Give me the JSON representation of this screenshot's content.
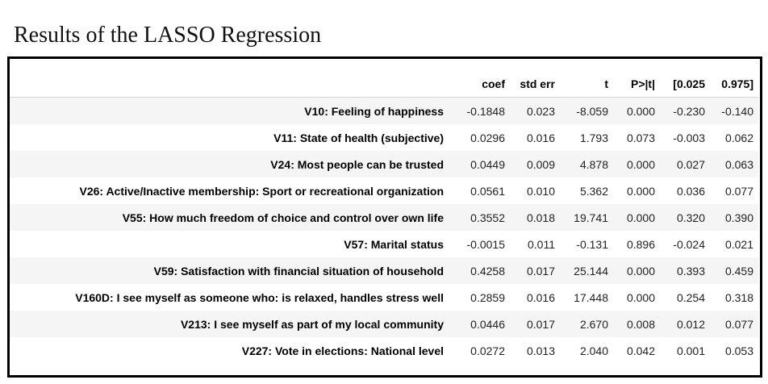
{
  "page": {
    "title": "Results of the LASSO Regression"
  },
  "table": {
    "columns": [
      "coef",
      "std err",
      "t",
      "P>|t|",
      "[0.025",
      "0.975]"
    ],
    "rows": [
      {
        "label": "V10: Feeling of happiness",
        "values": [
          "-0.1848",
          "0.023",
          "-8.059",
          "0.000",
          "-0.230",
          "-0.140"
        ]
      },
      {
        "label": "V11: State of health (subjective)",
        "values": [
          "0.0296",
          "0.016",
          "1.793",
          "0.073",
          "-0.003",
          "0.062"
        ]
      },
      {
        "label": "V24: Most people can be trusted",
        "values": [
          "0.0449",
          "0.009",
          "4.878",
          "0.000",
          "0.027",
          "0.063"
        ]
      },
      {
        "label": "V26: Active/Inactive membership: Sport or recreational organization",
        "values": [
          "0.0561",
          "0.010",
          "5.362",
          "0.000",
          "0.036",
          "0.077"
        ]
      },
      {
        "label": "V55: How much freedom of choice and control over own life",
        "values": [
          "0.3552",
          "0.018",
          "19.741",
          "0.000",
          "0.320",
          "0.390"
        ]
      },
      {
        "label": "V57: Marital status",
        "values": [
          "-0.0015",
          "0.011",
          "-0.131",
          "0.896",
          "-0.024",
          "0.021"
        ]
      },
      {
        "label": "V59: Satisfaction with financial situation of household",
        "values": [
          "0.4258",
          "0.017",
          "25.144",
          "0.000",
          "0.393",
          "0.459"
        ]
      },
      {
        "label": "V160D: I see myself as someone who: is relaxed, handles stress well",
        "values": [
          "0.2859",
          "0.016",
          "17.448",
          "0.000",
          "0.254",
          "0.318"
        ]
      },
      {
        "label": "V213: I see myself as part of my local community",
        "values": [
          "0.0446",
          "0.017",
          "2.670",
          "0.008",
          "0.012",
          "0.077"
        ]
      },
      {
        "label": "V227: Vote in elections: National level",
        "values": [
          "0.0272",
          "0.013",
          "2.040",
          "0.042",
          "0.001",
          "0.053"
        ]
      }
    ]
  }
}
